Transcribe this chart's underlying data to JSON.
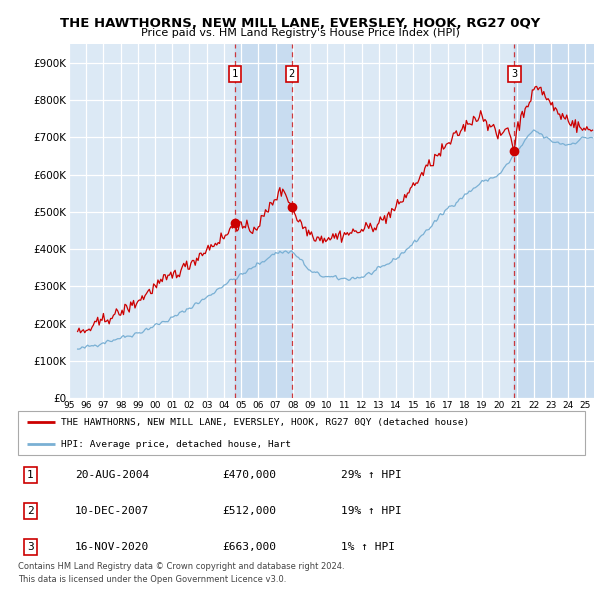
{
  "title": "THE HAWTHORNS, NEW MILL LANE, EVERSLEY, HOOK, RG27 0QY",
  "subtitle": "Price paid vs. HM Land Registry's House Price Index (HPI)",
  "ylim": [
    0,
    950000
  ],
  "yticks": [
    0,
    100000,
    200000,
    300000,
    400000,
    500000,
    600000,
    700000,
    800000,
    900000
  ],
  "ytick_labels": [
    "£0",
    "£100K",
    "£200K",
    "£300K",
    "£400K",
    "£500K",
    "£600K",
    "£700K",
    "£800K",
    "£900K"
  ],
  "plot_bg_color": "#dce9f5",
  "shade_color": "#c8dcf0",
  "grid_color": "#ffffff",
  "sale_color": "#cc0000",
  "hpi_color": "#7ab0d4",
  "sale_dates": [
    2004.63,
    2007.94,
    2020.88
  ],
  "sale_prices": [
    470000,
    512000,
    663000
  ],
  "sale_labels": [
    "1",
    "2",
    "3"
  ],
  "legend_entries": [
    "THE HAWTHORNS, NEW MILL LANE, EVERSLEY, HOOK, RG27 0QY (detached house)",
    "HPI: Average price, detached house, Hart"
  ],
  "table_entries": [
    {
      "num": "1",
      "date": "20-AUG-2004",
      "price": "£470,000",
      "pct": "29% ↑ HPI"
    },
    {
      "num": "2",
      "date": "10-DEC-2007",
      "price": "£512,000",
      "pct": "19% ↑ HPI"
    },
    {
      "num": "3",
      "date": "16-NOV-2020",
      "price": "£663,000",
      "pct": "1% ↑ HPI"
    }
  ],
  "footnote1": "Contains HM Land Registry data © Crown copyright and database right 2024.",
  "footnote2": "This data is licensed under the Open Government Licence v3.0.",
  "xmin": 1995.5,
  "xmax": 2025.5
}
